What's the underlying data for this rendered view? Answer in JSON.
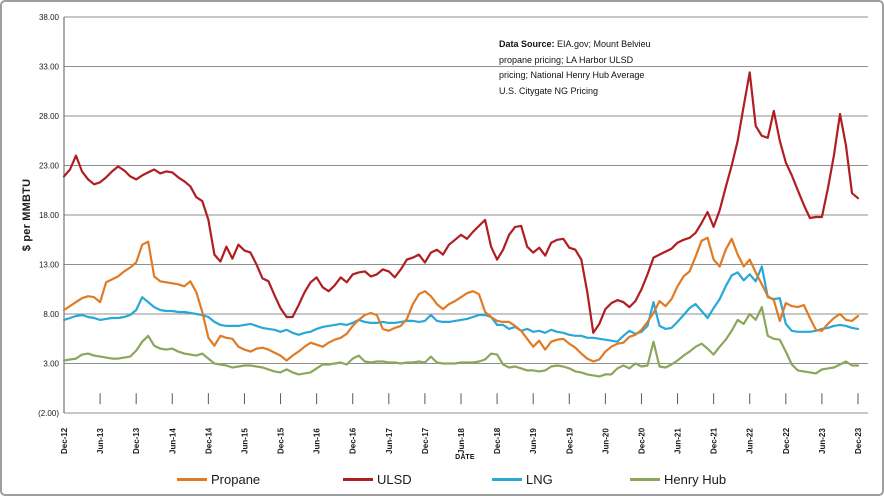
{
  "chart_data": {
    "type": "line",
    "title": "",
    "ylabel": "$ per MMBTU",
    "xlabel": "DATE",
    "ylim": [
      -2,
      38
    ],
    "grid": "horizontal",
    "legend_position": "bottom",
    "y_tick_values": [
      38,
      33,
      28,
      23,
      18,
      13,
      8,
      3,
      -2
    ],
    "y_tick_labels": [
      "38.00",
      "33.00",
      "28.00",
      "23.00",
      "18.00",
      "13.00",
      "8.00",
      "3.00",
      "(2.00)"
    ],
    "x_tick_every": 6,
    "x_tick_labels": [
      "Dec-12",
      "Jun-13",
      "Dec-13",
      "Jun-14",
      "Dec-14",
      "Jun-15",
      "Dec-15",
      "Jun-16",
      "Dec-16",
      "Jun-17",
      "Dec-17",
      "Jun-18",
      "Dec-18",
      "Jun-19",
      "Dec-19",
      "Jun-20",
      "Dec-20",
      "Jun-21",
      "Dec-21",
      "Jun-22",
      "Dec-22",
      "Jun-23",
      "Dec-23"
    ],
    "x_start": "Dec-12",
    "x_end": "Dec-23",
    "x_frequency": "monthly",
    "n_points": 133,
    "series": [
      {
        "name": "Propane",
        "color": "#e07b25",
        "values": [
          8.4,
          8.8,
          9.2,
          9.6,
          9.8,
          9.7,
          9.2,
          11.2,
          11.5,
          11.8,
          12.3,
          12.7,
          13.2,
          15.0,
          15.3,
          11.8,
          11.3,
          11.2,
          11.1,
          11.0,
          10.8,
          11.3,
          10.2,
          8.2,
          5.6,
          4.8,
          5.8,
          5.6,
          5.5,
          4.7,
          4.4,
          4.2,
          4.5,
          4.6,
          4.4,
          4.1,
          3.8,
          3.3,
          3.8,
          4.2,
          4.7,
          5.1,
          4.9,
          4.7,
          5.1,
          5.4,
          5.6,
          6.0,
          6.8,
          7.4,
          7.9,
          8.1,
          7.9,
          6.5,
          6.3,
          6.6,
          6.8,
          7.5,
          9.0,
          10.0,
          10.3,
          9.8,
          9.0,
          8.5,
          9.0,
          9.3,
          9.7,
          10.1,
          10.3,
          10.0,
          8.2,
          7.7,
          7.3,
          7.2,
          7.2,
          6.8,
          6.3,
          5.5,
          4.7,
          5.3,
          4.4,
          5.2,
          5.4,
          5.5,
          5.0,
          4.6,
          4.0,
          3.5,
          3.2,
          3.4,
          4.2,
          4.7,
          5.0,
          5.1,
          5.7,
          5.9,
          6.4,
          7.2,
          8.1,
          9.3,
          8.8,
          9.5,
          10.8,
          11.8,
          12.3,
          13.8,
          15.4,
          15.7,
          13.5,
          12.8,
          14.5,
          15.6,
          14.0,
          12.8,
          13.5,
          12.2,
          11.0,
          9.8,
          9.4,
          7.3,
          9.1,
          8.8,
          8.7,
          8.9,
          7.6,
          6.4,
          6.3,
          7.0,
          7.6,
          8.0,
          7.4,
          7.3,
          7.8
        ]
      },
      {
        "name": "ULSD",
        "color": "#b01e23",
        "values": [
          21.9,
          22.6,
          24.0,
          22.4,
          21.6,
          21.1,
          21.3,
          21.8,
          22.4,
          22.9,
          22.5,
          21.9,
          21.6,
          22.0,
          22.3,
          22.6,
          22.2,
          22.4,
          22.3,
          21.8,
          21.4,
          20.9,
          19.8,
          19.4,
          17.5,
          14.0,
          13.3,
          14.8,
          13.6,
          15.0,
          14.4,
          14.2,
          13.0,
          11.6,
          11.3,
          9.9,
          8.6,
          7.7,
          7.7,
          8.9,
          10.2,
          11.2,
          11.7,
          10.7,
          10.3,
          10.9,
          11.7,
          11.2,
          12.0,
          12.2,
          12.3,
          11.8,
          12.0,
          12.5,
          12.3,
          11.7,
          12.5,
          13.5,
          13.7,
          14.0,
          13.2,
          14.2,
          14.5,
          14.0,
          15.0,
          15.5,
          16.0,
          15.6,
          16.3,
          16.9,
          17.5,
          14.8,
          13.5,
          14.5,
          16.0,
          16.8,
          16.9,
          14.8,
          14.2,
          14.7,
          13.9,
          15.2,
          15.5,
          15.6,
          14.7,
          14.5,
          13.5,
          10.2,
          6.1,
          7.0,
          8.5,
          9.1,
          9.4,
          9.2,
          8.7,
          9.3,
          10.5,
          12.0,
          13.7,
          14.0,
          14.3,
          14.6,
          15.2,
          15.5,
          15.7,
          16.2,
          17.2,
          18.3,
          16.8,
          18.5,
          20.8,
          23.0,
          25.5,
          29.0,
          32.4,
          27.0,
          26.0,
          25.8,
          28.5,
          25.5,
          23.3,
          22.0,
          20.5,
          19.0,
          17.7,
          17.8,
          17.8,
          20.7,
          24.0,
          28.2,
          25.0,
          20.2,
          19.7
        ]
      },
      {
        "name": "LNG",
        "color": "#29a8d8",
        "values": [
          7.4,
          7.6,
          7.8,
          7.9,
          7.7,
          7.6,
          7.4,
          7.5,
          7.6,
          7.6,
          7.7,
          7.9,
          8.4,
          9.7,
          9.2,
          8.7,
          8.4,
          8.3,
          8.3,
          8.2,
          8.2,
          8.1,
          8.0,
          7.9,
          7.7,
          7.2,
          6.9,
          6.8,
          6.8,
          6.8,
          6.9,
          7.0,
          6.8,
          6.6,
          6.5,
          6.4,
          6.2,
          6.4,
          6.1,
          5.9,
          6.1,
          6.2,
          6.5,
          6.7,
          6.8,
          6.9,
          7.0,
          6.9,
          7.1,
          7.4,
          7.2,
          7.1,
          7.1,
          7.2,
          7.1,
          7.1,
          7.2,
          7.3,
          7.3,
          7.2,
          7.3,
          7.9,
          7.3,
          7.2,
          7.2,
          7.3,
          7.4,
          7.5,
          7.7,
          7.9,
          7.9,
          7.7,
          6.9,
          6.9,
          6.5,
          6.7,
          6.3,
          6.5,
          6.2,
          6.3,
          6.1,
          6.4,
          6.2,
          6.1,
          5.9,
          5.8,
          5.8,
          5.6,
          5.6,
          5.5,
          5.4,
          5.3,
          5.2,
          5.8,
          6.3,
          6.0,
          6.2,
          6.8,
          9.2,
          6.8,
          6.5,
          6.6,
          7.2,
          7.9,
          8.6,
          9.0,
          8.3,
          7.6,
          8.6,
          9.5,
          10.8,
          11.9,
          12.2,
          11.4,
          12.0,
          11.3,
          12.8,
          9.7,
          9.5,
          9.6,
          7.0,
          6.3,
          6.2,
          6.2,
          6.2,
          6.3,
          6.5,
          6.6,
          6.8,
          6.9,
          6.8,
          6.6,
          6.5
        ]
      },
      {
        "name": "Henry Hub",
        "color": "#8ca65a",
        "values": [
          3.3,
          3.4,
          3.5,
          3.9,
          4.0,
          3.8,
          3.7,
          3.6,
          3.5,
          3.5,
          3.6,
          3.7,
          4.3,
          5.2,
          5.8,
          4.8,
          4.5,
          4.4,
          4.5,
          4.2,
          4.0,
          3.9,
          3.8,
          4.0,
          3.5,
          3.0,
          2.9,
          2.8,
          2.6,
          2.7,
          2.8,
          2.8,
          2.7,
          2.6,
          2.4,
          2.2,
          2.1,
          2.4,
          2.1,
          1.9,
          2.0,
          2.1,
          2.5,
          2.9,
          2.9,
          3.0,
          3.1,
          2.9,
          3.5,
          3.8,
          3.2,
          3.1,
          3.2,
          3.2,
          3.1,
          3.1,
          3.0,
          3.1,
          3.1,
          3.2,
          3.1,
          3.7,
          3.1,
          3.0,
          3.0,
          3.0,
          3.1,
          3.1,
          3.1,
          3.2,
          3.4,
          4.0,
          3.9,
          2.9,
          2.6,
          2.7,
          2.5,
          2.3,
          2.3,
          2.2,
          2.3,
          2.7,
          2.8,
          2.7,
          2.5,
          2.2,
          2.1,
          1.9,
          1.8,
          1.7,
          1.9,
          1.9,
          2.5,
          2.8,
          2.5,
          3.0,
          2.7,
          2.8,
          5.2,
          2.7,
          2.6,
          2.9,
          3.3,
          3.8,
          4.2,
          4.7,
          5.0,
          4.5,
          3.9,
          4.7,
          5.4,
          6.3,
          7.4,
          7.0,
          8.0,
          7.4,
          8.7,
          5.8,
          5.5,
          5.4,
          4.2,
          2.9,
          2.3,
          2.2,
          2.1,
          2.0,
          2.4,
          2.5,
          2.6,
          2.9,
          3.2,
          2.8,
          2.8
        ]
      }
    ]
  },
  "axis": {
    "y_title": "$ per MMBTU",
    "x_title": "DATE"
  },
  "annotation": {
    "bold": "Data Source:",
    "rest_first_line": "  EIA.gov; Mount Belvieu",
    "lines": [
      "propane pricing;  LA Harbor ULSD",
      "pricing; National Henry Hub Average",
      "U.S. Citygate NG Pricing"
    ]
  },
  "style": {
    "gridline_color": "#8f8f8f",
    "axis_color": "#595959",
    "text_color": "#1a1a1a"
  }
}
